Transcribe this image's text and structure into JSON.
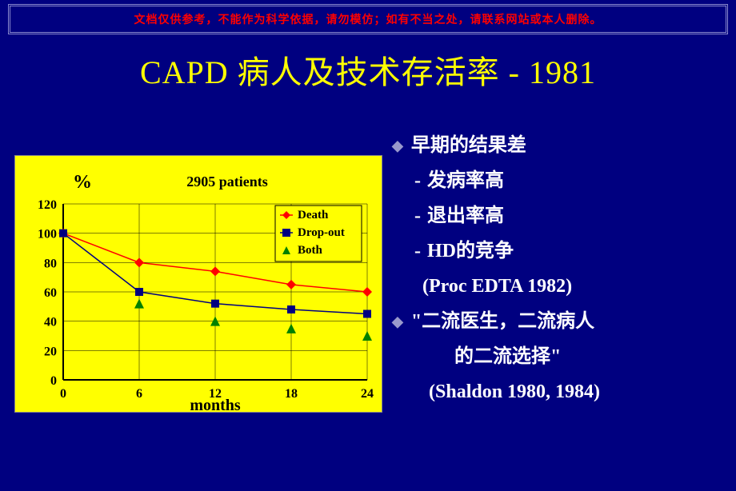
{
  "banner": {
    "text": "文档仅供参考，不能作为科学依据，请勿模仿；如有不当之处，请联系网站或本人删除。",
    "color": "#ff0000"
  },
  "title": {
    "text": "CAPD 病人及技术存活率 - 1981",
    "color": "#ffff00"
  },
  "chart": {
    "type": "line",
    "background_color": "#ffff00",
    "plot_background": "#ffff00",
    "subtitle": "2905 patients",
    "y_label": "%",
    "x_label": "months",
    "label_fontsize": 20,
    "subtitle_fontsize": 18,
    "tick_fontsize": 16,
    "xlim": [
      0,
      24
    ],
    "ylim": [
      0,
      120
    ],
    "xticks": [
      0,
      6,
      12,
      18,
      24
    ],
    "yticks": [
      0,
      20,
      40,
      60,
      80,
      100,
      120
    ],
    "grid_color": "#000000",
    "grid_width": 0.5,
    "axis_color": "#000000",
    "legend": {
      "position": "top-right",
      "background": "#ffff00",
      "border": "#000000",
      "items": [
        {
          "label": "Death",
          "color": "#ff0000",
          "marker": "diamond"
        },
        {
          "label": "Drop-out",
          "color": "#000080",
          "marker": "square"
        },
        {
          "label": "Both",
          "color": "#008000",
          "marker": "triangle"
        }
      ]
    },
    "series": [
      {
        "name": "Death",
        "color": "#ff0000",
        "marker": "diamond",
        "marker_size": 6,
        "line_width": 1.5,
        "x": [
          0,
          6,
          12,
          18,
          24
        ],
        "y": [
          100,
          80,
          74,
          65,
          60
        ]
      },
      {
        "name": "Drop-out",
        "color": "#000080",
        "marker": "square",
        "marker_size": 5,
        "line_width": 1.5,
        "x": [
          0,
          6,
          12,
          18,
          24
        ],
        "y": [
          100,
          60,
          52,
          48,
          45
        ]
      },
      {
        "name": "Both",
        "color": "#008000",
        "marker": "triangle",
        "marker_size": 6,
        "line_width": 0,
        "x": [
          6,
          12,
          18,
          24
        ],
        "y": [
          52,
          40,
          35,
          30
        ]
      }
    ]
  },
  "bullets": {
    "heading": "早期的结果差",
    "sub1": "发病率高",
    "sub2": "退出率高",
    "sub3": "HD的竞争",
    "ref1": "(Proc EDTA 1982)",
    "quote1": "\"二流医生，二流病人",
    "quote2": "的二流选择\"",
    "ref2": "(Shaldon 1980, 1984)",
    "dash": "-"
  },
  "colors": {
    "slide_bg": "#000080",
    "text_white": "#ffffff",
    "bullet_diamond": "#9999cc"
  }
}
